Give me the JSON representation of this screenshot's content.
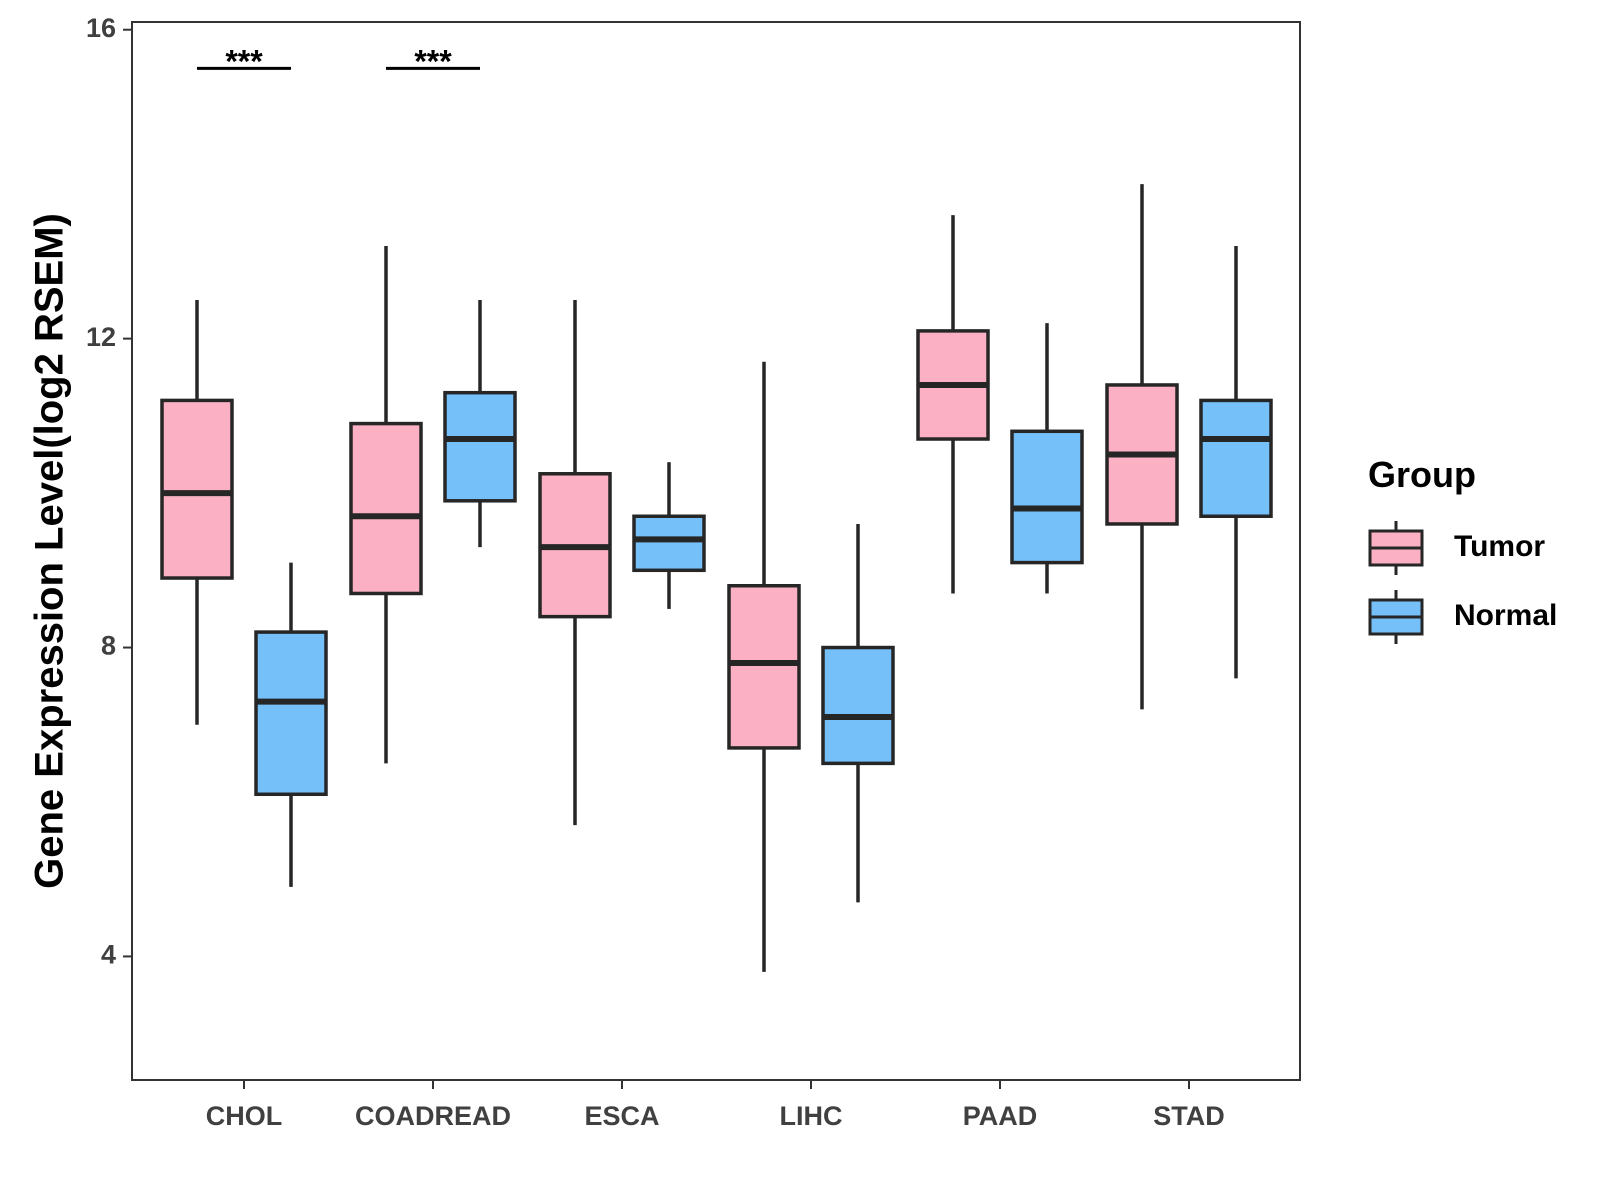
{
  "chart_data": {
    "type": "boxplot",
    "title": "",
    "xlabel": "",
    "ylabel": "Gene Expression Level(log2 RSEM)",
    "ylim": [
      2.4,
      16.1
    ],
    "yticks": [
      4,
      8,
      12,
      16
    ],
    "ytick_labels": [
      "4",
      "8",
      "12",
      "16"
    ],
    "categories": [
      "CHOL",
      "COADREAD",
      "ESCA",
      "LIHC",
      "PAAD",
      "STAD"
    ],
    "legend": {
      "title": "Group",
      "position": "right",
      "entries": [
        {
          "name": "Tumor",
          "color": "#FBB1C3"
        },
        {
          "name": "Normal",
          "color": "#75C0F9"
        }
      ]
    },
    "series": [
      {
        "name": "Tumor",
        "color": "#FBB1C3",
        "boxes": [
          {
            "min": 7.0,
            "q1": 8.9,
            "median": 10.0,
            "q3": 11.2,
            "max": 12.5
          },
          {
            "min": 6.5,
            "q1": 8.7,
            "median": 9.7,
            "q3": 10.9,
            "max": 13.2
          },
          {
            "min": 5.7,
            "q1": 8.4,
            "median": 9.3,
            "q3": 10.25,
            "max": 12.5
          },
          {
            "min": 3.8,
            "q1": 6.7,
            "median": 7.8,
            "q3": 8.8,
            "max": 11.7
          },
          {
            "min": 8.7,
            "q1": 10.7,
            "median": 11.4,
            "q3": 12.1,
            "max": 13.6
          },
          {
            "min": 7.2,
            "q1": 9.6,
            "median": 10.5,
            "q3": 11.4,
            "max": 14.0
          }
        ]
      },
      {
        "name": "Normal",
        "color": "#75C0F9",
        "boxes": [
          {
            "min": 4.9,
            "q1": 6.1,
            "median": 7.3,
            "q3": 8.2,
            "max": 9.1
          },
          {
            "min": 9.3,
            "q1": 9.9,
            "median": 10.7,
            "q3": 11.3,
            "max": 12.5
          },
          {
            "min": 8.5,
            "q1": 9.0,
            "median": 9.4,
            "q3": 9.7,
            "max": 10.4
          },
          {
            "min": 4.7,
            "q1": 6.5,
            "median": 7.1,
            "q3": 8.0,
            "max": 9.6
          },
          {
            "min": 8.7,
            "q1": 9.1,
            "median": 9.8,
            "q3": 10.8,
            "max": 12.2
          },
          {
            "min": 7.6,
            "q1": 9.7,
            "median": 10.7,
            "q3": 11.2,
            "max": 13.2
          }
        ]
      }
    ],
    "annotations": [
      {
        "category": "CHOL",
        "text": "***",
        "y": 15.5
      },
      {
        "category": "COADREAD",
        "text": "***",
        "y": 15.5
      }
    ]
  }
}
